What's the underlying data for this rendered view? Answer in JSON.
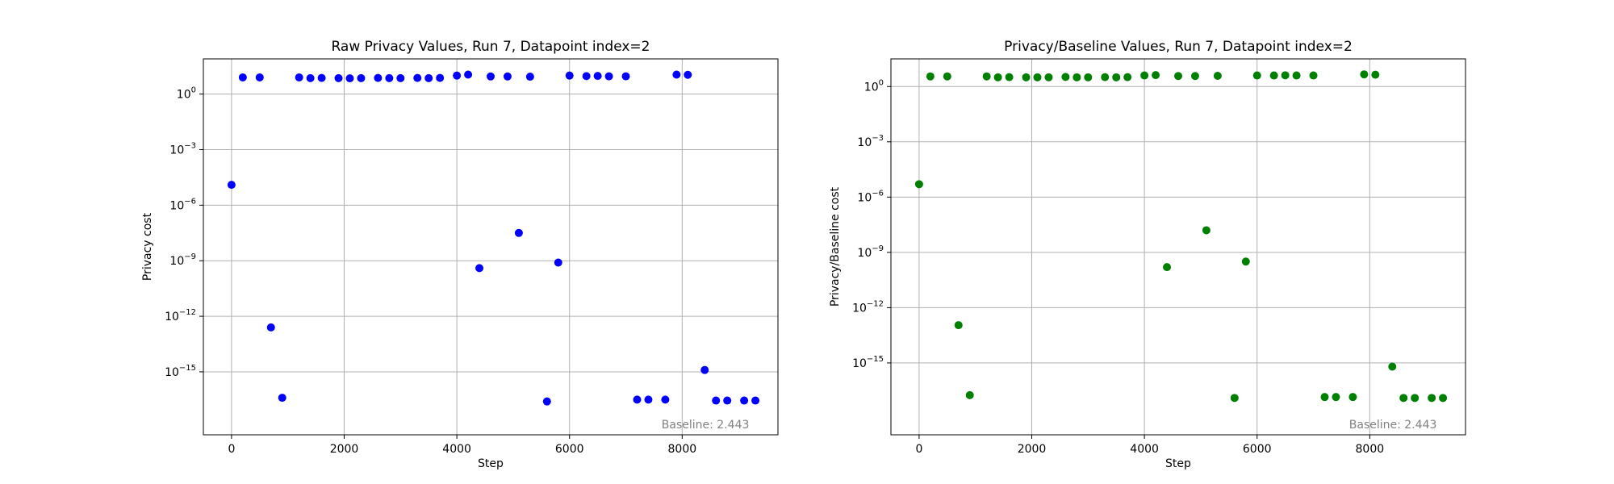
{
  "chart_data": [
    {
      "type": "scatter",
      "title": "Raw Privacy Values, Run 7, Datapoint index=2",
      "xlabel": "Step",
      "ylabel": "Privacy cost",
      "yscale": "log",
      "xlim": [
        -500,
        9700
      ],
      "ylim_log10": [
        -18.4,
        1.9
      ],
      "xticks": [
        {
          "value": 0,
          "label": "0"
        },
        {
          "value": 2000,
          "label": "2000"
        },
        {
          "value": 4000,
          "label": "4000"
        },
        {
          "value": 6000,
          "label": "6000"
        },
        {
          "value": 8000,
          "label": "8000"
        }
      ],
      "yticks": [
        {
          "exp": 0,
          "base": "10",
          "sup": "0"
        },
        {
          "exp": -3,
          "base": "10",
          "sup": "−3"
        },
        {
          "exp": -6,
          "base": "10",
          "sup": "−6"
        },
        {
          "exp": -9,
          "base": "10",
          "sup": "−9"
        },
        {
          "exp": -12,
          "base": "10",
          "sup": "−12"
        },
        {
          "exp": -15,
          "base": "10",
          "sup": "−15"
        }
      ],
      "grid": true,
      "color": "#0000ff",
      "annotation": "Baseline: 2.443",
      "x": [
        0,
        200,
        500,
        700,
        900,
        1200,
        1400,
        1600,
        1900,
        2100,
        2300,
        2600,
        2800,
        3000,
        3300,
        3500,
        3700,
        4000,
        4200,
        4400,
        4600,
        4900,
        5100,
        5300,
        5600,
        5800,
        6000,
        6300,
        6500,
        6700,
        7000,
        7200,
        7400,
        7700,
        7900,
        8100,
        8400,
        8600,
        8800,
        9100,
        9300
      ],
      "y_log10": [
        -4.9,
        0.9,
        0.9,
        -12.6,
        -16.4,
        0.9,
        0.86,
        0.87,
        0.86,
        0.85,
        0.86,
        0.87,
        0.86,
        0.86,
        0.87,
        0.86,
        0.87,
        1.0,
        1.05,
        -9.4,
        0.95,
        0.95,
        -7.5,
        0.94,
        -16.6,
        -9.1,
        1.0,
        0.97,
        0.98,
        0.96,
        0.96,
        -16.5,
        -16.5,
        -16.5,
        1.05,
        1.04,
        -14.9,
        -16.55,
        -16.55,
        -16.55,
        -16.55
      ]
    },
    {
      "type": "scatter",
      "title": "Privacy/Baseline Values, Run 7, Datapoint index=2",
      "xlabel": "Step",
      "ylabel": "Privacy/Baseline cost",
      "yscale": "log",
      "xlim": [
        -500,
        9700
      ],
      "ylim_log10": [
        -18.9,
        1.5
      ],
      "xticks": [
        {
          "value": 0,
          "label": "0"
        },
        {
          "value": 2000,
          "label": "2000"
        },
        {
          "value": 4000,
          "label": "4000"
        },
        {
          "value": 6000,
          "label": "6000"
        },
        {
          "value": 8000,
          "label": "8000"
        }
      ],
      "yticks": [
        {
          "exp": 0,
          "base": "10",
          "sup": "0"
        },
        {
          "exp": -3,
          "base": "10",
          "sup": "−3"
        },
        {
          "exp": -6,
          "base": "10",
          "sup": "−6"
        },
        {
          "exp": -9,
          "base": "10",
          "sup": "−9"
        },
        {
          "exp": -12,
          "base": "10",
          "sup": "−12"
        },
        {
          "exp": -15,
          "base": "10",
          "sup": "−15"
        }
      ],
      "grid": true,
      "color": "#008000",
      "annotation": "Baseline: 2.443",
      "x": [
        0,
        200,
        500,
        700,
        900,
        1200,
        1400,
        1600,
        1900,
        2100,
        2300,
        2600,
        2800,
        3000,
        3300,
        3500,
        3700,
        4000,
        4200,
        4400,
        4600,
        4900,
        5100,
        5300,
        5600,
        5800,
        6000,
        6300,
        6500,
        6700,
        7000,
        7200,
        7400,
        7700,
        7900,
        8100,
        8400,
        8600,
        8800,
        9100,
        9300
      ],
      "y_log10": [
        -5.3,
        0.55,
        0.55,
        -12.95,
        -16.75,
        0.55,
        0.5,
        0.51,
        0.5,
        0.5,
        0.5,
        0.52,
        0.5,
        0.5,
        0.51,
        0.5,
        0.51,
        0.6,
        0.62,
        -9.8,
        0.57,
        0.57,
        -7.8,
        0.58,
        -16.9,
        -9.5,
        0.6,
        0.6,
        0.61,
        0.6,
        0.6,
        -16.85,
        -16.85,
        -16.85,
        0.66,
        0.64,
        -15.2,
        -16.9,
        -16.9,
        -16.9,
        -16.9
      ]
    }
  ]
}
